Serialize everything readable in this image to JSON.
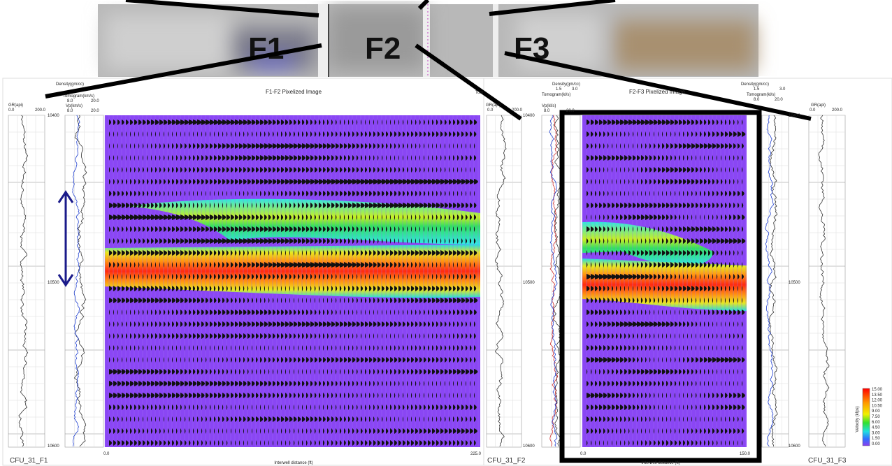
{
  "top": {
    "labels": [
      "F1",
      "F2",
      "F3"
    ]
  },
  "panel1": {
    "title": "F1-F2 Pixelized Image",
    "right_cut": "Tom",
    "gr": {
      "name": "GR(api)",
      "min": "0.0",
      "max": "200.0"
    },
    "density": {
      "name": "Density(gm/cc)"
    },
    "tomogram": {
      "name": "Tomogram(km/s)",
      "min": "8.0",
      "max": "20.0"
    },
    "vp": {
      "name": "Vp(km/s)",
      "min": "8.0",
      "max": "20.0"
    },
    "depths": [
      "10400",
      "10500",
      "10600"
    ],
    "distance": {
      "min": "0.0",
      "max": "225.0",
      "label": "Interwell distance (ft)"
    },
    "well": "CFU_31_F1"
  },
  "panel2": {
    "title": "F2-F3 Pixelized Image",
    "left": {
      "gr": {
        "name": "GR(api)",
        "min": "0.0",
        "max": "200.0"
      },
      "density": {
        "name": "Density(gm/cc)",
        "min": "1.5",
        "max": "3.0"
      },
      "tomogram": {
        "name": "Tomogram(kl/s)"
      },
      "vp": {
        "name": "Vp(kl/s)",
        "min": "8.0",
        "max": "20.0"
      }
    },
    "right": {
      "density": {
        "name": "Density(gm/cc)",
        "min": "1.5",
        "max": "3.0"
      },
      "tomogram": {
        "name": "Tomogram(kl/s)",
        "min": "8.0",
        "max": "20.0"
      },
      "gr": {
        "name": "GR(api)",
        "min": "0.0",
        "max": "200.0"
      }
    },
    "depths": [
      "10400",
      "10500",
      "10600"
    ],
    "distance": {
      "min": "0.0",
      "max": "150.0",
      "label": "Interwell distance (ft)"
    },
    "wells": [
      "CFU_31_F2",
      "CFU_31_F3"
    ],
    "legend": {
      "title": "Velocity (kfps)",
      "values": [
        "15.00",
        "13.50",
        "12.00",
        "10.50",
        "9.00",
        "7.50",
        "6.00",
        "4.50",
        "3.00",
        "1.50",
        "0.00"
      ]
    }
  }
}
